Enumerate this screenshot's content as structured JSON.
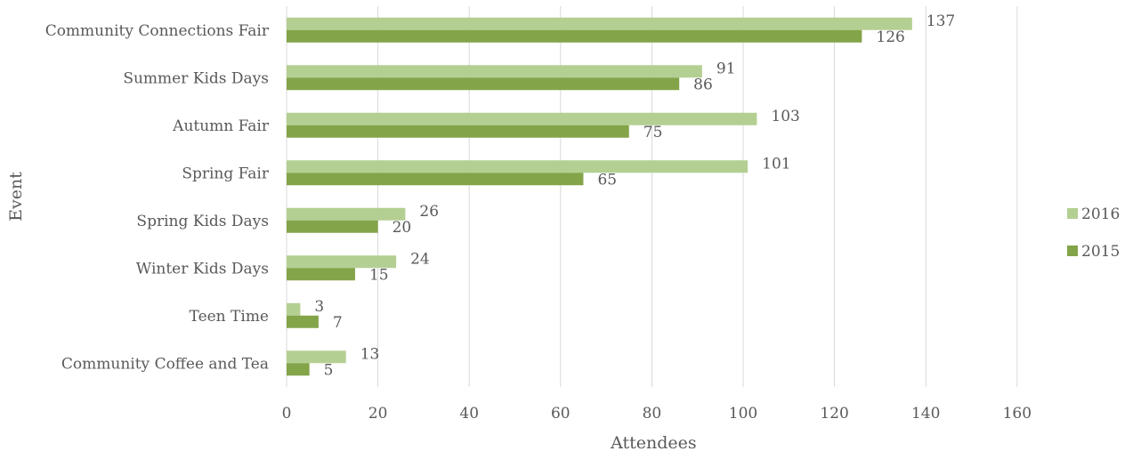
{
  "chart_data": {
    "type": "bar",
    "orientation": "horizontal",
    "title": "",
    "xlabel": "Attendees",
    "ylabel": "Event",
    "xlim": [
      0,
      160
    ],
    "x_ticks": [
      0,
      20,
      40,
      60,
      80,
      100,
      120,
      140,
      160
    ],
    "grid": true,
    "legend_position": "right",
    "categories": [
      "Community Connections Fair",
      "Summer Kids Days",
      "Autumn Fair",
      "Spring Fair",
      "Spring Kids Days",
      "Winter Kids Days",
      "Teen Time",
      "Community Coffee and Tea"
    ],
    "series": [
      {
        "name": "2016",
        "color": "#b4cf92",
        "values": [
          137,
          91,
          103,
          101,
          26,
          24,
          3,
          13
        ]
      },
      {
        "name": "2015",
        "color": "#84a449",
        "values": [
          126,
          86,
          75,
          65,
          20,
          15,
          7,
          5
        ]
      }
    ],
    "data_labels": true
  }
}
